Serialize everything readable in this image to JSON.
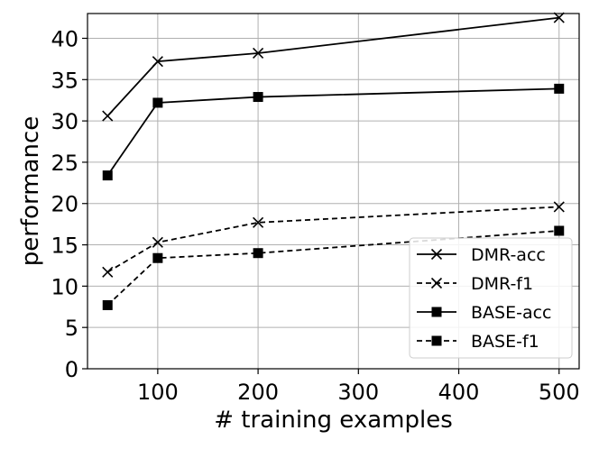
{
  "chart_data": {
    "type": "line",
    "title": "",
    "xlabel": "# training examples",
    "ylabel": "performance",
    "x": [
      50,
      100,
      200,
      500
    ],
    "xlim": [
      30,
      520
    ],
    "ylim": [
      0,
      43
    ],
    "xticks": [
      100,
      200,
      300,
      400,
      500
    ],
    "yticks": [
      0,
      5,
      10,
      15,
      20,
      25,
      30,
      35,
      40
    ],
    "grid": true,
    "legend_position": "lower-right",
    "series": [
      {
        "name": "DMR-acc",
        "values": [
          30.6,
          37.2,
          38.2,
          42.5
        ],
        "line_style": "solid",
        "marker": "x"
      },
      {
        "name": "DMR-f1",
        "values": [
          11.7,
          15.3,
          17.7,
          19.6
        ],
        "line_style": "dashed",
        "marker": "x"
      },
      {
        "name": "BASE-acc",
        "values": [
          23.4,
          32.2,
          32.9,
          33.9
        ],
        "line_style": "solid",
        "marker": "square"
      },
      {
        "name": "BASE-f1",
        "values": [
          7.7,
          13.4,
          14.0,
          16.7
        ],
        "line_style": "dashed",
        "marker": "square"
      }
    ],
    "colors": {
      "line": "#000000",
      "grid": "#b0b0b0",
      "legend_border": "#cccccc"
    }
  }
}
